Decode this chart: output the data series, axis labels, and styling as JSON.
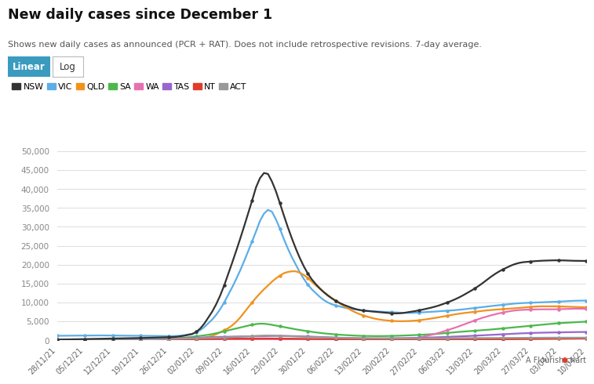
{
  "title": "New daily cases since December 1",
  "subtitle": "Shows new daily cases as announced (PCR + RAT). Does not include retrospective revisions. 7-day average.",
  "button_linear": "Linear",
  "button_log": "Log",
  "legend": [
    "NSW",
    "VIC",
    "QLD",
    "SA",
    "WA",
    "TAS",
    "NT",
    "ACT"
  ],
  "colors": {
    "NSW": "#333333",
    "VIC": "#5baee8",
    "QLD": "#f0921e",
    "SA": "#4cb84c",
    "WA": "#e870b0",
    "TAS": "#9966cc",
    "NT": "#e03c2c",
    "ACT": "#999999"
  },
  "x_labels": [
    "28/11/21",
    "05/12/21",
    "12/12/21",
    "19/12/21",
    "26/12/21",
    "02/01/22",
    "09/01/22",
    "16/01/22",
    "23/01/22",
    "30/01/22",
    "06/02/22",
    "13/02/22",
    "20/02/22",
    "27/02/22",
    "06/03/22",
    "13/03/22",
    "20/03/22",
    "27/03/22",
    "03/04/22",
    "10/04/22"
  ],
  "ylim": [
    0,
    50000
  ],
  "yticks": [
    0,
    5000,
    10000,
    15000,
    20000,
    25000,
    30000,
    35000,
    40000,
    45000,
    50000
  ],
  "n_points": 134,
  "background_color": "#ffffff",
  "grid_color": "#dddddd",
  "flourish_text": "A Flourish chart"
}
